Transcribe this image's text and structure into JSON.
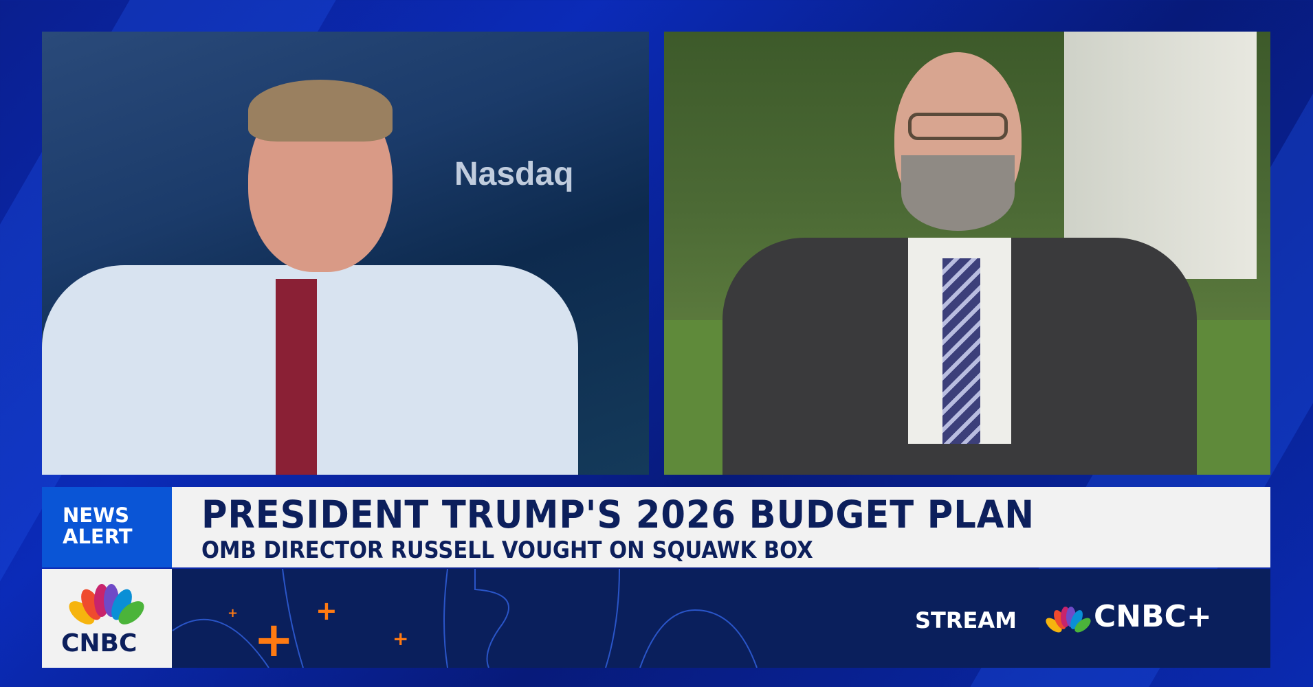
{
  "left_video": {
    "background_text": "Nasdaq"
  },
  "banner": {
    "badge": [
      "NEWS",
      "ALERT"
    ],
    "headline": "PRESIDENT TRUMP'S 2026 BUDGET PLAN",
    "subheadline": "OMB DIRECTOR RUSSELL VOUGHT ON SQUAWK BOX"
  },
  "bottom_bar": {
    "network_logo": "CNBC",
    "stream_label": "STREAM",
    "stream_brand": "CNBC+"
  },
  "colors": {
    "badge_blue": "#0a55d6",
    "navy": "#0c1f5c",
    "accent_orange": "#ff7a12",
    "background_blue": "#0b2bb8"
  }
}
